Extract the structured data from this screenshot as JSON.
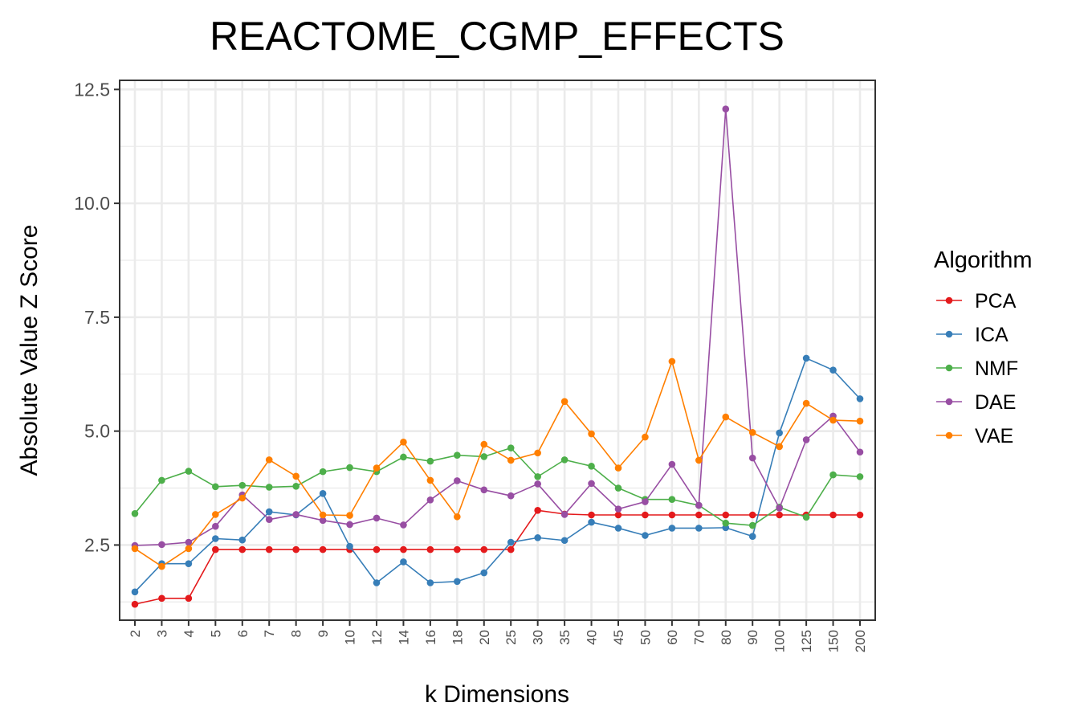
{
  "chart_data": {
    "type": "line",
    "title": "REACTOME_CGMP_EFFECTS",
    "xlabel": "k Dimensions",
    "ylabel": "Absolute Value Z Score",
    "categories": [
      "2",
      "3",
      "4",
      "5",
      "6",
      "7",
      "8",
      "9",
      "10",
      "12",
      "14",
      "16",
      "18",
      "20",
      "25",
      "30",
      "35",
      "40",
      "45",
      "50",
      "60",
      "70",
      "80",
      "90",
      "100",
      "125",
      "150",
      "200"
    ],
    "ylim": [
      0.85,
      12.7
    ],
    "yticks": [
      2.5,
      5.0,
      7.5,
      10.0,
      12.5
    ],
    "ytick_labels": [
      "2.5",
      "5.0",
      "7.5",
      "10.0",
      "12.5"
    ],
    "grid": true,
    "legend": {
      "title": "Algorithm",
      "position": "right"
    },
    "series": [
      {
        "name": "PCA",
        "color": "#e41a1c",
        "values": [
          1.2,
          1.33,
          1.33,
          2.4,
          2.4,
          2.4,
          2.4,
          2.4,
          2.4,
          2.4,
          2.4,
          2.4,
          2.4,
          2.4,
          2.4,
          3.26,
          3.18,
          3.16,
          3.16,
          3.16,
          3.16,
          3.16,
          3.16,
          3.16,
          3.16,
          3.16,
          3.16,
          3.16
        ]
      },
      {
        "name": "ICA",
        "color": "#377eb8",
        "values": [
          1.47,
          2.09,
          2.09,
          2.64,
          2.61,
          3.23,
          3.16,
          3.63,
          2.47,
          1.67,
          2.13,
          1.67,
          1.7,
          1.89,
          2.56,
          2.66,
          2.6,
          3.0,
          2.87,
          2.71,
          2.87,
          2.87,
          2.88,
          2.69,
          4.96,
          6.6,
          6.34,
          5.71
        ]
      },
      {
        "name": "NMF",
        "color": "#4daf4a",
        "values": [
          3.19,
          3.92,
          4.12,
          3.78,
          3.81,
          3.77,
          3.79,
          4.11,
          4.2,
          4.11,
          4.43,
          4.34,
          4.47,
          4.44,
          4.63,
          4.0,
          4.37,
          4.23,
          3.75,
          3.5,
          3.5,
          3.37,
          2.98,
          2.93,
          3.33,
          3.11,
          4.04,
          4.0
        ]
      },
      {
        "name": "DAE",
        "color": "#984ea3",
        "values": [
          2.49,
          2.51,
          2.56,
          2.91,
          3.6,
          3.06,
          3.17,
          3.04,
          2.95,
          3.09,
          2.94,
          3.49,
          3.91,
          3.71,
          3.58,
          3.84,
          3.17,
          3.85,
          3.29,
          3.45,
          4.27,
          3.37,
          12.07,
          4.41,
          3.31,
          4.81,
          5.33,
          4.54
        ]
      },
      {
        "name": "VAE",
        "color": "#ff7f00",
        "values": [
          2.42,
          2.03,
          2.42,
          3.17,
          3.53,
          4.37,
          4.01,
          3.16,
          3.15,
          4.19,
          4.76,
          3.92,
          3.12,
          4.71,
          4.36,
          4.52,
          5.65,
          4.94,
          4.19,
          4.87,
          6.53,
          4.36,
          5.31,
          4.97,
          4.66,
          5.61,
          5.24,
          5.22
        ]
      }
    ]
  }
}
